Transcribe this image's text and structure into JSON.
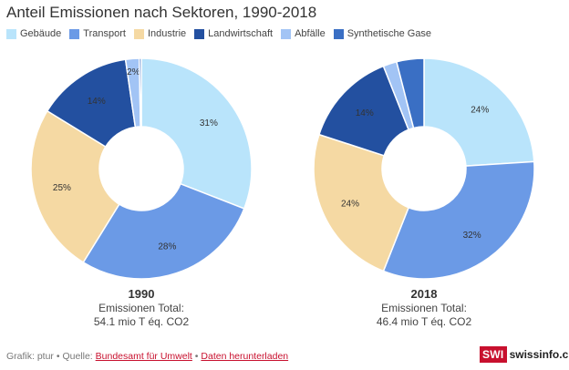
{
  "title": "Anteil Emissionen nach Sektoren, 1990-2018",
  "legend": [
    {
      "label": "Gebäude",
      "color": "#b9e4fb"
    },
    {
      "label": "Transport",
      "color": "#6b9ae6"
    },
    {
      "label": "Industrie",
      "color": "#f5d9a3"
    },
    {
      "label": "Landwirtschaft",
      "color": "#2350a0"
    },
    {
      "label": "Abfälle",
      "color": "#a2c4f5"
    },
    {
      "label": "Synthetische Gase",
      "color": "#3a6fc4"
    }
  ],
  "chart_data": [
    {
      "type": "pie",
      "title": "1990",
      "subtitle": "Emissionen Total:",
      "total": "54.1 mio T éq. CO2",
      "categories": [
        "Gebäude",
        "Transport",
        "Industrie",
        "Landwirtschaft",
        "Abfälle",
        "Synthetische Gase"
      ],
      "values": [
        31,
        28,
        25,
        14,
        2,
        0.3
      ],
      "labels": [
        "31%",
        "28%",
        "25%",
        "14%",
        "2%",
        ""
      ]
    },
    {
      "type": "pie",
      "title": "2018",
      "subtitle": "Emissionen Total:",
      "total": "46.4 mio T éq. CO2",
      "categories": [
        "Gebäude",
        "Transport",
        "Industrie",
        "Landwirtschaft",
        "Abfälle",
        "Synthetische Gase"
      ],
      "values": [
        24,
        32,
        24,
        14,
        2,
        4
      ],
      "labels": [
        "24%",
        "32%",
        "24%",
        "14%",
        "",
        ""
      ]
    }
  ],
  "footer": {
    "prefix": "Grafik: ptur • Quelle:",
    "source_link": "Bundesamt für Umwelt",
    "separator": "•",
    "download_link": "Daten herunterladen"
  },
  "brand": {
    "badge": "SWI",
    "name": "swissinfo.ch"
  }
}
